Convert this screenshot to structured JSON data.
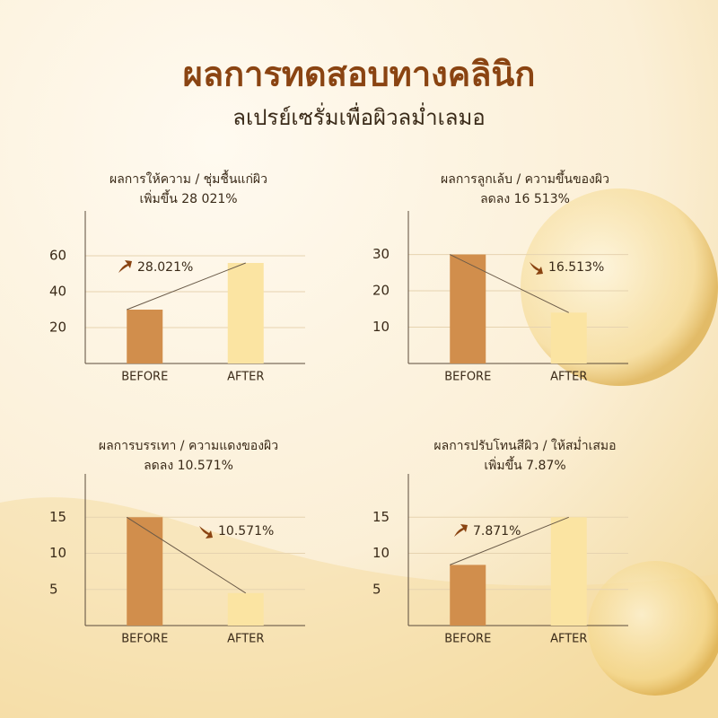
{
  "title": "ผลการทดสอบทางคลินิก",
  "subtitle": "ลเปรย์เซรั่มเพื่อผิวลม่ำเลมอ",
  "chart_data": [
    {
      "type": "bar",
      "title": "ผลการให้ความ / ชุ่มชื้นแก่ผิว",
      "subtitle": "เพิ่มขึ้น 28 021%",
      "categories": [
        "BEFORE",
        "AFTER"
      ],
      "values": [
        30,
        56
      ],
      "colors": [
        "#d18e4c",
        "#fbe4a2"
      ],
      "ylim": [
        0,
        85
      ],
      "yticks": [
        20,
        40,
        60
      ],
      "grid": true,
      "annotation": "28.021%"
    },
    {
      "type": "bar",
      "title": "ผลการลูกเล้บ / ความขึ้นของผิว",
      "subtitle": "ลดลง 16 513%",
      "categories": [
        "BEFORE",
        "AFTER"
      ],
      "values": [
        30,
        14
      ],
      "colors": [
        "#d18e4c",
        "#fbe4a2"
      ],
      "ylim": [
        0,
        42
      ],
      "yticks": [
        10,
        20,
        30
      ],
      "grid": true,
      "annotation": "16.513%"
    },
    {
      "type": "bar",
      "title": "ผลการบรรเทา / ความแดงของผิว",
      "subtitle": "ลดลง 10.571%",
      "categories": [
        "BEFORE",
        "AFTER"
      ],
      "values": [
        15,
        4.5
      ],
      "colors": [
        "#d18e4c",
        "#fbe4a2"
      ],
      "ylim": [
        0,
        21
      ],
      "yticks": [
        5,
        10,
        15
      ],
      "grid": true,
      "annotation": "10.571%"
    },
    {
      "type": "bar",
      "title": "ผลการปรับโทนสีผิว / ให้สม่ำเสมอ",
      "subtitle": "เพิ่มขึ้น 7.87%",
      "categories": [
        "BEFORE",
        "AFTER"
      ],
      "values": [
        8.4,
        15
      ],
      "colors": [
        "#d18e4c",
        "#fbe4a2"
      ],
      "ylim": [
        0,
        21
      ],
      "yticks": [
        5,
        10,
        15
      ],
      "grid": true,
      "annotation": "7.871%"
    }
  ]
}
